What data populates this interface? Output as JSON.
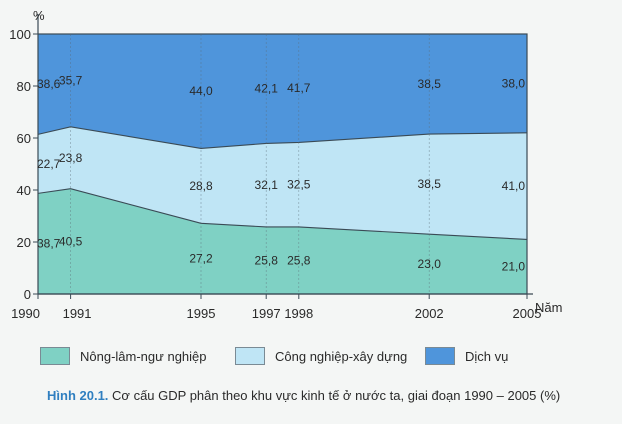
{
  "chart_data": {
    "type": "area",
    "stacked": true,
    "x": [
      1990,
      1991,
      1995,
      1997,
      1998,
      2002,
      2005
    ],
    "x_tick_labels": [
      "1990",
      "1991",
      "1995",
      "1997",
      "1998",
      "2002",
      "2005"
    ],
    "xlabel": "Năm",
    "ylabel": "%",
    "ylim": [
      0,
      100
    ],
    "y_ticks": [
      "0",
      "20",
      "40",
      "60",
      "80",
      "100"
    ],
    "grid": false,
    "legend_position": "bottom",
    "series": [
      {
        "name": "Nông-lâm-ngư nghiệp",
        "color": "#7fd1c4",
        "values": [
          38.7,
          40.5,
          27.2,
          25.8,
          25.8,
          23.0,
          21.0
        ],
        "labels": [
          "38,7",
          "40,5",
          "27,2",
          "25,8",
          "25,8",
          "23,0",
          "21,0"
        ]
      },
      {
        "name": "Công nghiệp-xây dựng",
        "color": "#bfe5f5",
        "values": [
          22.7,
          23.8,
          28.8,
          32.1,
          32.5,
          38.5,
          41.0
        ],
        "labels": [
          "22,7",
          "23,8",
          "28,8",
          "32,1",
          "32,5",
          "38,5",
          "41,0"
        ]
      },
      {
        "name": "Dịch vụ",
        "color": "#4f95db",
        "values": [
          38.6,
          35.7,
          44.0,
          42.1,
          41.7,
          38.5,
          38.0
        ],
        "labels": [
          "38,6",
          "35,7",
          "44,0",
          "42,1",
          "41,7",
          "38,5",
          "38,0"
        ]
      }
    ]
  },
  "caption": {
    "figure_number": "Hình 20.1.",
    "text": "Cơ cấu GDP phân theo khu vực kinh tế ở nước ta, giai đoạn 1990 – 2005 (%)"
  }
}
